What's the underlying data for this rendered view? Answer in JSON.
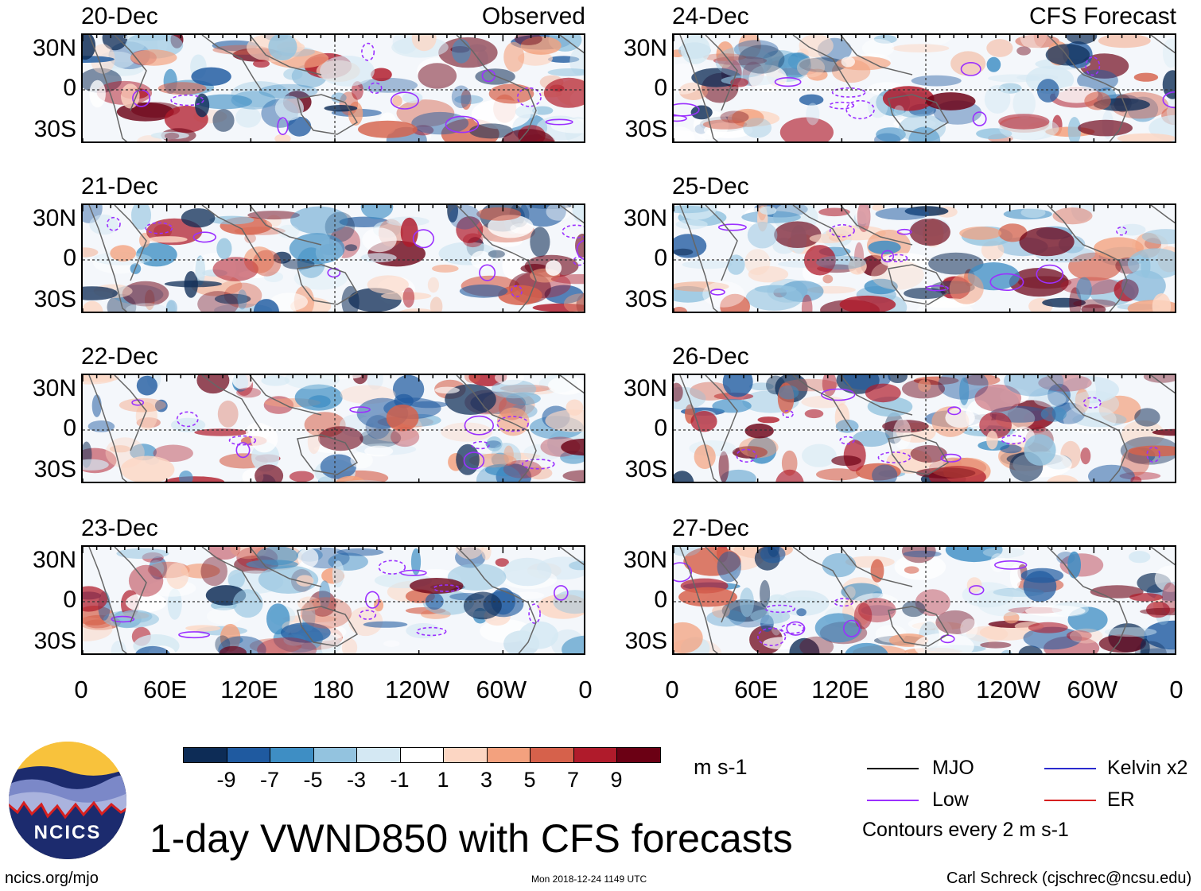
{
  "headers": {
    "observed": "Observed",
    "forecast": "CFS Forecast"
  },
  "panels": [
    {
      "date": "20-Dec",
      "group": "observed"
    },
    {
      "date": "21-Dec",
      "group": "observed"
    },
    {
      "date": "22-Dec",
      "group": "observed"
    },
    {
      "date": "23-Dec",
      "group": "observed"
    },
    {
      "date": "24-Dec",
      "group": "forecast"
    },
    {
      "date": "25-Dec",
      "group": "forecast"
    },
    {
      "date": "26-Dec",
      "group": "forecast"
    },
    {
      "date": "27-Dec",
      "group": "forecast"
    }
  ],
  "chart_data": {
    "type": "heatmap",
    "title": "1-day VWND850 with CFS forecasts",
    "variable": "850 hPa meridional wind (VWND850)",
    "units": "m s-1",
    "x_ticks": [
      "0",
      "60E",
      "120E",
      "180",
      "120W",
      "60W",
      "0"
    ],
    "y_ticks": [
      "30N",
      "0",
      "30S"
    ],
    "color_levels": [
      "-9",
      "-7",
      "-5",
      "-3",
      "-1",
      "1",
      "3",
      "5",
      "7",
      "9"
    ],
    "color_scale": [
      "#0d2c56",
      "#1f5aa0",
      "#3e8ec4",
      "#93c3df",
      "#d4e8f3",
      "#ffffff",
      "#fcd6c3",
      "#f3a17e",
      "#d6614b",
      "#b01b2b",
      "#6b0014"
    ],
    "contours": [
      {
        "name": "MJO",
        "color": "#000000"
      },
      {
        "name": "Kelvin x2",
        "color": "#2b2bcf"
      },
      {
        "name": "Low",
        "color": "#9b30ff"
      },
      {
        "name": "ER",
        "color": "#d62020"
      }
    ],
    "contour_note": "Contours every 2 m s-1"
  },
  "footer": {
    "logo_text": "NCICS",
    "site": "ncics.org/mjo",
    "timestamp": "Mon 2018-12-24 1149 UTC",
    "author": "Carl Schreck (cjschrec@ncsu.edu)"
  }
}
